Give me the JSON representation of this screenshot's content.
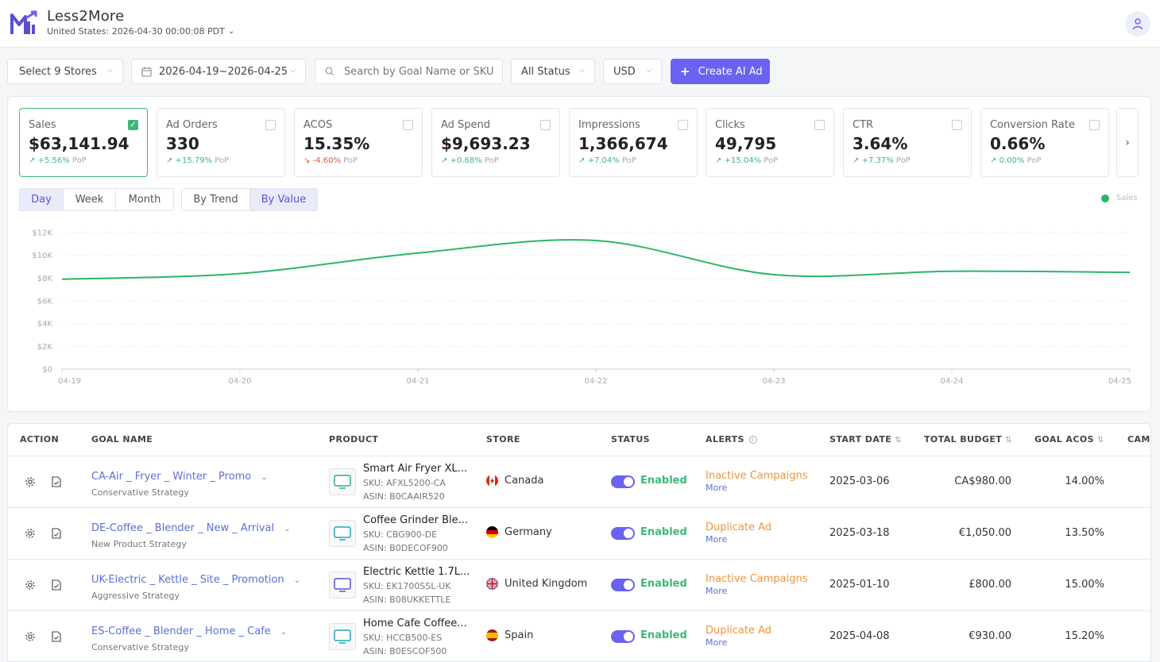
{
  "app": {
    "title": "Less2More",
    "subtitle": "United States: 2026-04-30 00:00:08 PDT"
  },
  "toolbar": {
    "stores": "Select 9 Stores",
    "date_range": "2026-04-19~2026-04-25",
    "search_placeholder": "Search by Goal Name or SKU",
    "status": "All Status",
    "currency": "USD",
    "create_button": "Create AI Ad"
  },
  "kpis": [
    {
      "label": "Sales",
      "value": "$63,141.94",
      "pop": "+5.56%",
      "pop_suffix": "PoP",
      "trend": "up",
      "checked": true
    },
    {
      "label": "Ad Orders",
      "value": "330",
      "pop": "+15.79%",
      "pop_suffix": "PoP",
      "trend": "up",
      "checked": false
    },
    {
      "label": "ACOS",
      "value": "15.35%",
      "pop": "-4.60%",
      "pop_suffix": "PoP",
      "trend": "down",
      "checked": false
    },
    {
      "label": "Ad Spend",
      "value": "$9,693.23",
      "pop": "+0.68%",
      "pop_suffix": "PoP",
      "trend": "up",
      "checked": false
    },
    {
      "label": "Impressions",
      "value": "1,366,674",
      "pop": "+7.04%",
      "pop_suffix": "PoP",
      "trend": "up",
      "checked": false
    },
    {
      "label": "Clicks",
      "value": "49,795",
      "pop": "+15.04%",
      "pop_suffix": "PoP",
      "trend": "up",
      "checked": false
    },
    {
      "label": "CTR",
      "value": "3.64%",
      "pop": "+7.37%",
      "pop_suffix": "PoP",
      "trend": "up",
      "checked": false
    },
    {
      "label": "Conversion Rate",
      "value": "0.66%",
      "pop": "0.00%",
      "pop_suffix": "PoP",
      "trend": "up",
      "checked": false
    }
  ],
  "period_tabs": [
    "Day",
    "Week",
    "Month"
  ],
  "view_tabs": [
    "By Trend",
    "By Value"
  ],
  "chart_data": {
    "type": "line",
    "x": [
      "04-19",
      "04-20",
      "04-21",
      "04-22",
      "04-23",
      "04-24",
      "04-25"
    ],
    "series": [
      {
        "name": "Sales",
        "color": "#2bb56a",
        "values": [
          7900,
          8400,
          10200,
          11300,
          8300,
          8600,
          8500
        ]
      }
    ],
    "y_ticks": [
      "$0",
      "$2K",
      "$4K",
      "$6K",
      "$8K",
      "$10K",
      "$12K"
    ],
    "ylim": [
      0,
      12000
    ],
    "grid": true,
    "legend_position": "top-right"
  },
  "table": {
    "headers": {
      "action": "ACTION",
      "goal_name": "GOAL NAME",
      "product": "PRODUCT",
      "store": "STORE",
      "status": "STATUS",
      "alerts": "ALERTS",
      "start_date": "START DATE",
      "total_budget": "TOTAL BUDGET",
      "goal_acos": "GOAL ACOS",
      "camp": "CAMI"
    },
    "rows": [
      {
        "goal": "CA-Air _ Fryer _ Winter _ Promo",
        "strategy": "Conservative Strategy",
        "product": "Smart Air Fryer XL...",
        "thumb": "Air",
        "sku": "SKU: AFXL5200-CA",
        "asin": "ASIN: B0CAAIR520",
        "store": "Canada",
        "status": "Enabled",
        "alert": "Inactive Campaigns",
        "more": "More",
        "start": "2025-03-06",
        "budget": "CA$980.00",
        "acos": "14.00%"
      },
      {
        "goal": "DE-Coffee _ Blender _ New _ Arrival",
        "strategy": "New Product Strategy",
        "product": "Coffee Grinder Ble...",
        "thumb": "Cafe",
        "sku": "SKU: CBG900-DE",
        "asin": "ASIN: B0DECOF900",
        "store": "Germany",
        "status": "Enabled",
        "alert": "Duplicate Ad",
        "more": "More",
        "start": "2025-03-18",
        "budget": "€1,050.00",
        "acos": "13.50%"
      },
      {
        "goal": "UK-Electric _ Kettle _ Site _ Promotion",
        "strategy": "Aggressive Strategy",
        "product": "Electric Kettle 1.7L...",
        "thumb": "Kettle",
        "sku": "SKU: EK1700SSL-UK",
        "asin": "ASIN: B08UKKETTLE",
        "store": "United Kingdom",
        "status": "Enabled",
        "alert": "Inactive Campaigns",
        "more": "More",
        "start": "2025-01-10",
        "budget": "£800.00",
        "acos": "15.00%"
      },
      {
        "goal": "ES-Coffee _ Blender _ Home _ Cafe",
        "strategy": "Conservative Strategy",
        "product": "Home Cafe Coffee...",
        "thumb": "Cafe",
        "sku": "SKU: HCCB500-ES",
        "asin": "ASIN: B0ESCOF500",
        "store": "Spain",
        "status": "Enabled",
        "alert": "Duplicate Ad",
        "more": "More",
        "start": "2025-04-08",
        "budget": "€930.00",
        "acos": "15.20%"
      }
    ]
  }
}
